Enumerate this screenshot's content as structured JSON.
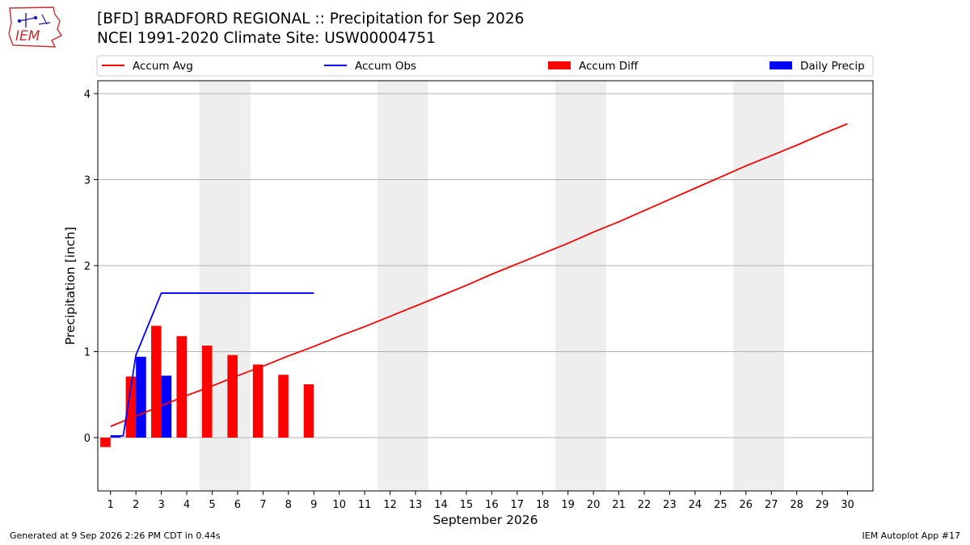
{
  "header": {
    "title_line1": "[BFD] BRADFORD REGIONAL :: Precipitation for Sep 2026",
    "title_line2": "NCEI 1991-2020 Climate Site: USW00004751",
    "logo_text": "IEM"
  },
  "footer": {
    "left": "Generated at 9 Sep 2026 2:26 PM CDT in 0.44s",
    "right": "IEM Autoplot App #17"
  },
  "colors": {
    "avg": "#ff0000",
    "obs": "#0000ff",
    "diff": "#ff0000",
    "daily": "#0000ff",
    "weekend": "#eeeeee",
    "grid": "#b0b0b0"
  },
  "chart_data": {
    "type": "bar",
    "title": "[BFD] BRADFORD REGIONAL :: Precipitation for Sep 2026",
    "xlabel": "September 2026",
    "ylabel": "Precipitation [inch]",
    "xlim": [
      0.5,
      31
    ],
    "ylim": [
      -0.62,
      4.15
    ],
    "yticks": [
      0,
      1,
      2,
      3,
      4
    ],
    "xticks": [
      1,
      2,
      3,
      4,
      5,
      6,
      7,
      8,
      9,
      10,
      11,
      12,
      13,
      14,
      15,
      16,
      17,
      18,
      19,
      20,
      21,
      22,
      23,
      24,
      25,
      26,
      27,
      28,
      29,
      30
    ],
    "grid": "horizontal",
    "legend_position": "top",
    "weekend_shading": [
      [
        4.5,
        6.5
      ],
      [
        11.5,
        13.5
      ],
      [
        18.5,
        20.5
      ],
      [
        25.5,
        27.5
      ]
    ],
    "series": [
      {
        "name": "Accum Avg",
        "type": "line",
        "x": [
          1,
          2,
          3,
          4,
          5,
          6,
          7,
          8,
          9,
          10,
          11,
          12,
          13,
          14,
          15,
          16,
          17,
          18,
          19,
          20,
          21,
          22,
          23,
          24,
          25,
          26,
          27,
          28,
          29,
          30
        ],
        "values": [
          0.13,
          0.25,
          0.37,
          0.49,
          0.6,
          0.72,
          0.83,
          0.95,
          1.06,
          1.18,
          1.29,
          1.41,
          1.53,
          1.65,
          1.77,
          1.9,
          2.02,
          2.14,
          2.26,
          2.39,
          2.51,
          2.64,
          2.77,
          2.9,
          3.03,
          3.16,
          3.28,
          3.4,
          3.53,
          3.65
        ]
      },
      {
        "name": "Accum Obs",
        "type": "line",
        "x": [
          1,
          1.5,
          2,
          3,
          4,
          5,
          6,
          7,
          8,
          9
        ],
        "values": [
          0.02,
          0.02,
          0.96,
          1.68,
          1.68,
          1.68,
          1.68,
          1.68,
          1.68,
          1.68
        ]
      },
      {
        "name": "Accum Diff",
        "type": "bar",
        "x": [
          1,
          2,
          3,
          4,
          5,
          6,
          7,
          8,
          9
        ],
        "values": [
          -0.11,
          0.71,
          1.3,
          1.18,
          1.07,
          0.96,
          0.85,
          0.73,
          0.62
        ]
      },
      {
        "name": "Daily Precip",
        "type": "bar",
        "x": [
          1,
          2,
          3
        ],
        "values": [
          0.02,
          0.94,
          0.72
        ]
      }
    ]
  }
}
